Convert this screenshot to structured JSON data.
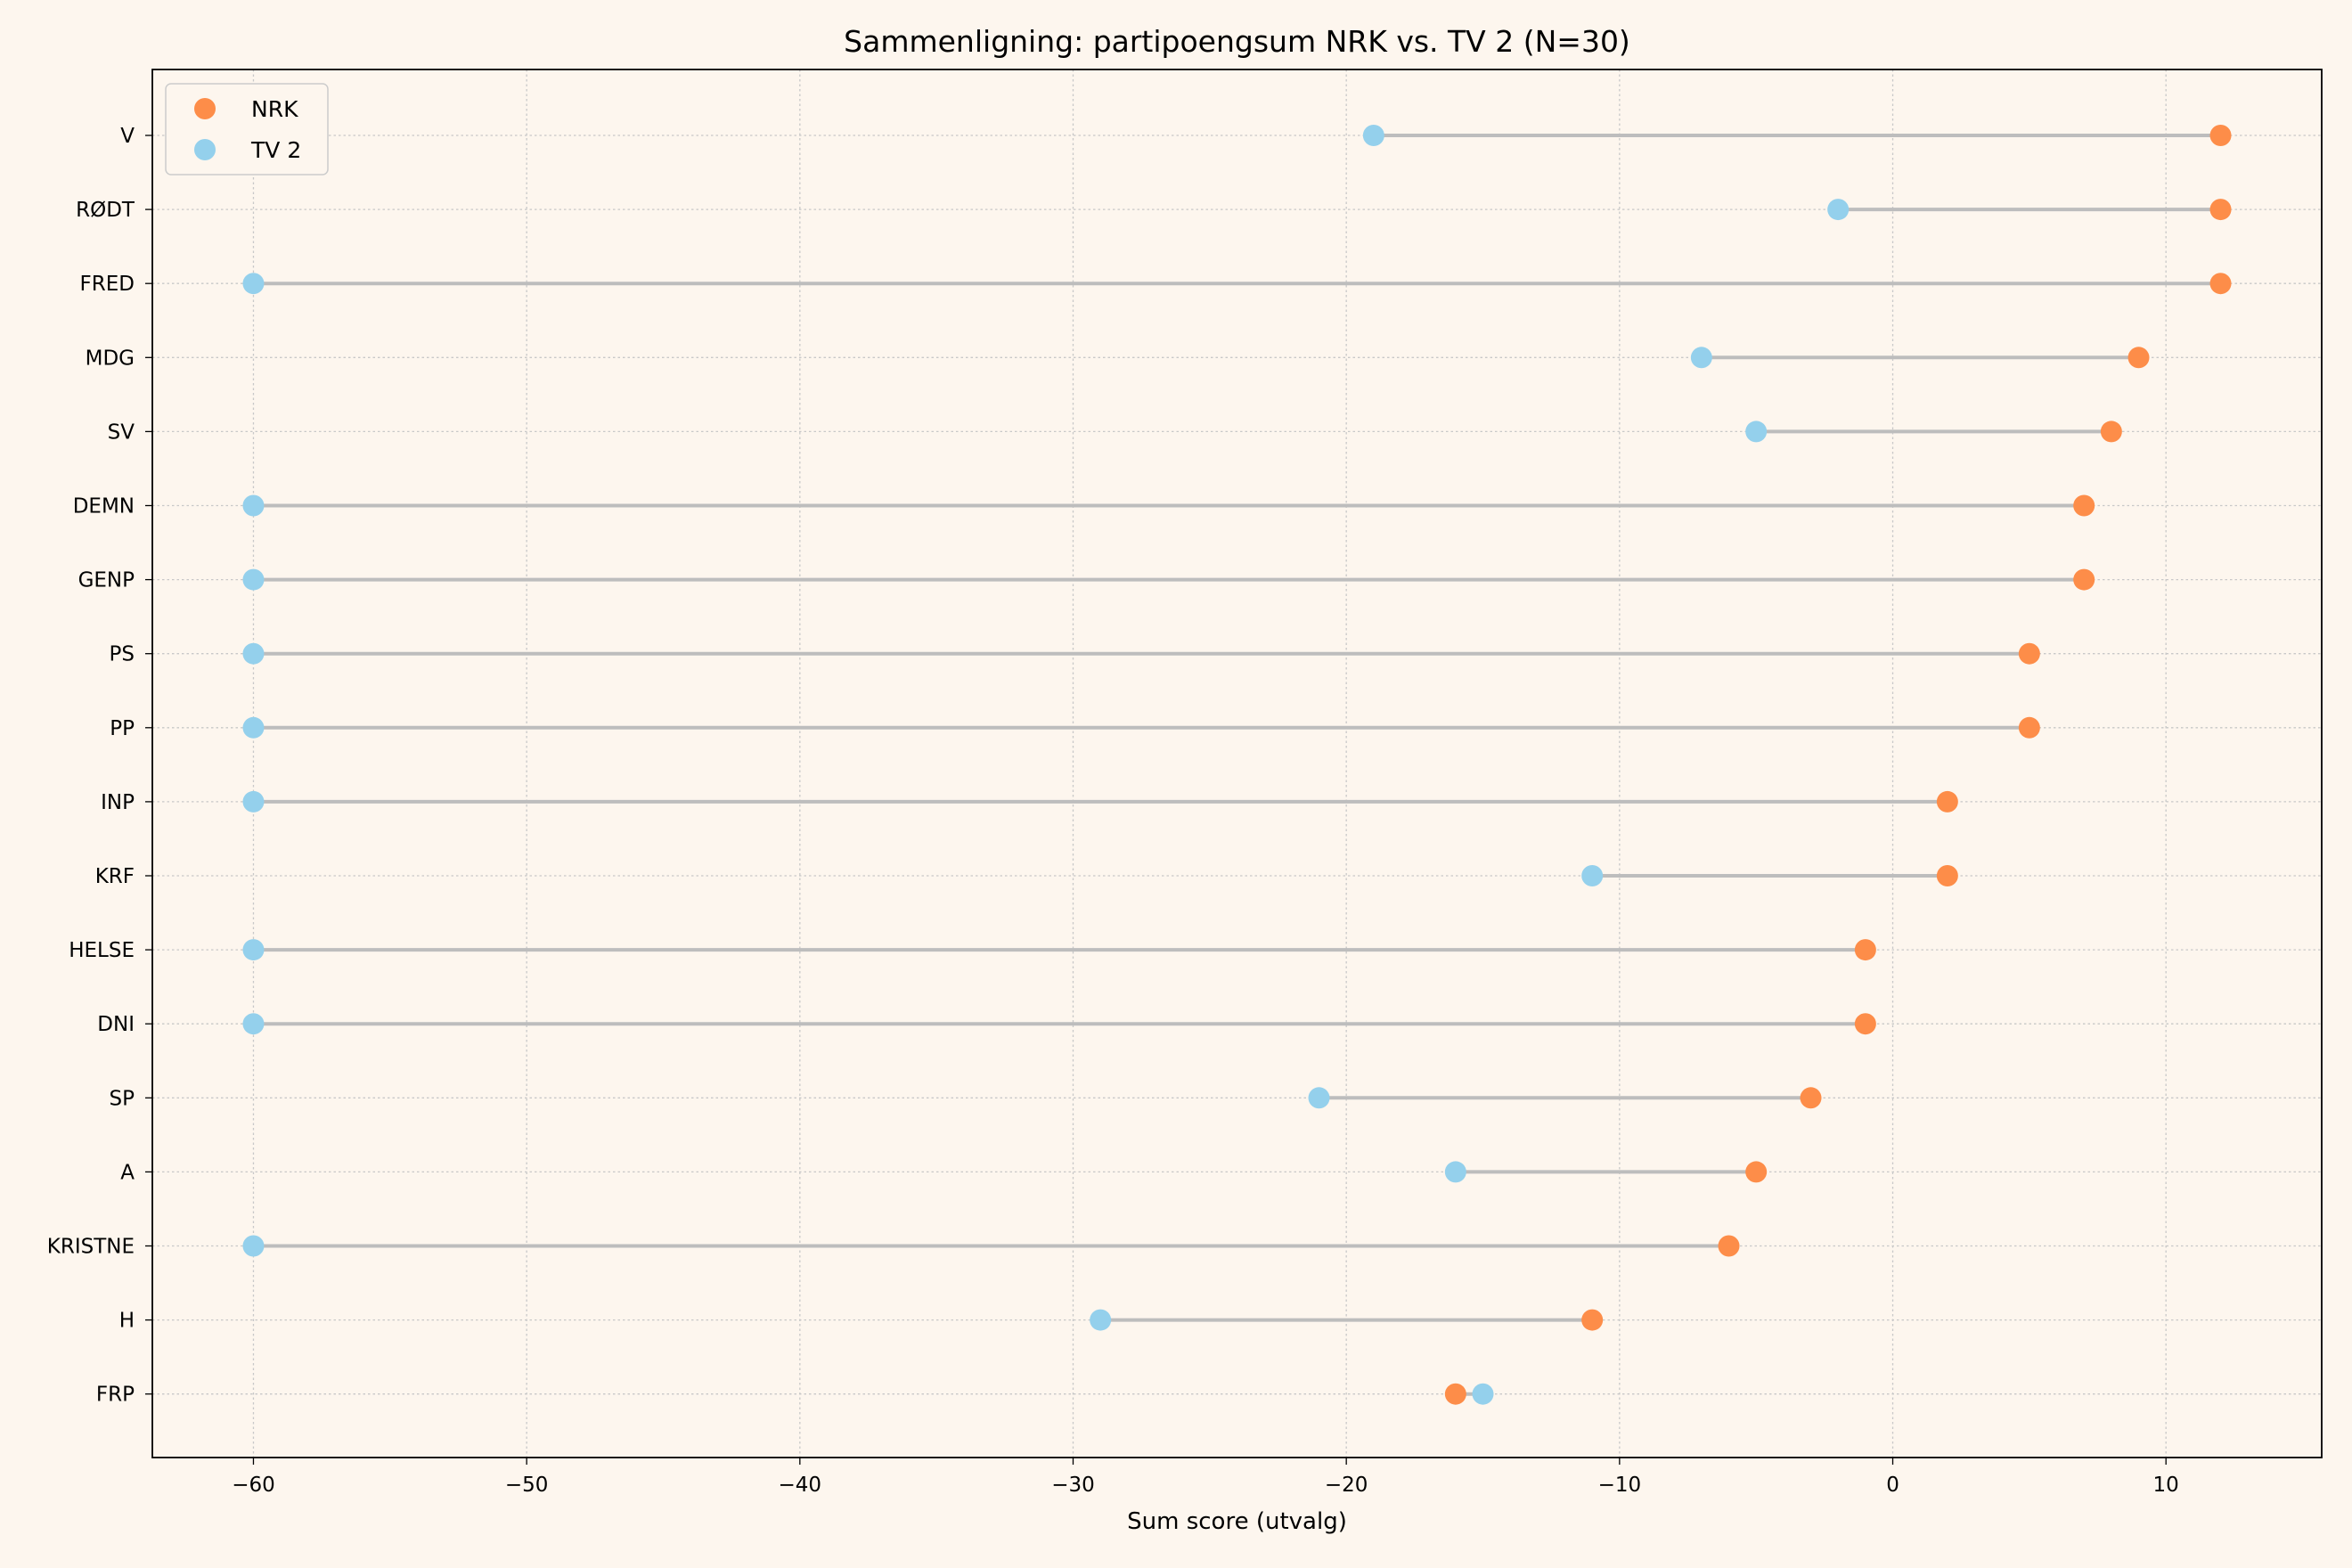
{
  "chart_data": {
    "type": "scatter",
    "subtype": "dumbbell",
    "title": "Sammenligning: partipoengsum NRK vs. TV 2 (N=30)",
    "xlabel": "Sum score (utvalg)",
    "ylabel": "",
    "xlim": [
      -63.7,
      15.7
    ],
    "xticks": [
      -60,
      -50,
      -40,
      -30,
      -20,
      -10,
      0,
      10
    ],
    "xtick_labels": [
      "−60",
      "−50",
      "−40",
      "−30",
      "−20",
      "−10",
      "0",
      "10"
    ],
    "grid": true,
    "legend_position": "top-left",
    "categories": [
      "V",
      "RØDT",
      "FRED",
      "MDG",
      "SV",
      "DEMN",
      "GENP",
      "PS",
      "PP",
      "INP",
      "KRF",
      "HELSE",
      "DNI",
      "SP",
      "A",
      "KRISTNE",
      "H",
      "FRP"
    ],
    "series": [
      {
        "name": "NRK",
        "color": "#fd8d49",
        "values": [
          12,
          12,
          12,
          9,
          8,
          7,
          7,
          5,
          5,
          2,
          2,
          -1,
          -1,
          -3,
          -5,
          -6,
          -11,
          -16
        ]
      },
      {
        "name": "TV 2",
        "color": "#94d0ec",
        "values": [
          -19,
          -2,
          -60,
          -7,
          -5,
          -60,
          -60,
          -60,
          -60,
          -60,
          -11,
          -60,
          -60,
          -21,
          -16,
          -60,
          -29,
          -15
        ]
      }
    ],
    "connector_color": "#bdbdbd"
  }
}
